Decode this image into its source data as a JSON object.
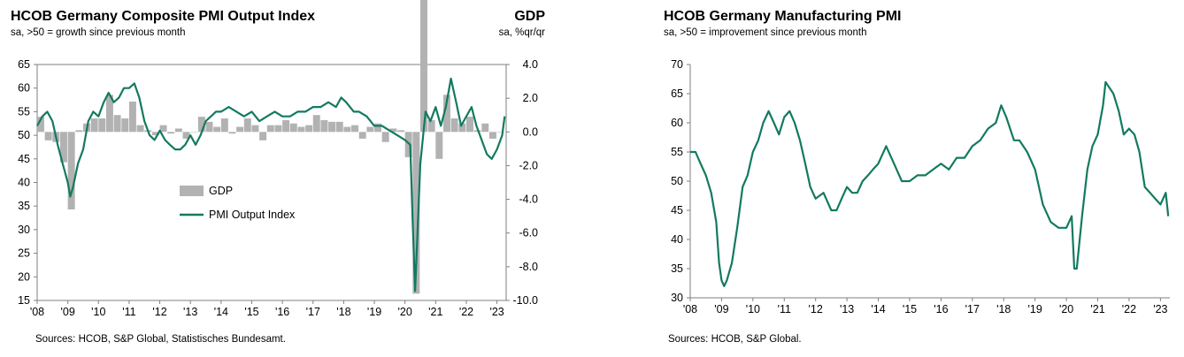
{
  "colors": {
    "line": "#127a60",
    "bars": "#b2b2b2",
    "axis": "#7f7f7f"
  },
  "charts": [
    {
      "title": "HCOB Germany Composite PMI Output Index",
      "subtitle": "sa, >50 = growth since previous month",
      "right_title": "GDP",
      "right_subtitle": "sa, %qr/qr",
      "source": "Sources: HCOB, S&P Global, Statistisches Bundesamt."
    },
    {
      "title": "HCOB Germany Manufacturing PMI",
      "subtitle": "sa, >50 = improvement since previous month",
      "source": "Sources: HCOB, S&P Global."
    }
  ],
  "chart_data": [
    {
      "type": "line",
      "x_ticks": [
        "'08",
        "'09",
        "'10",
        "'11",
        "'12",
        "'13",
        "'14",
        "'15",
        "'16",
        "'17",
        "'18",
        "'19",
        "'20",
        "'21",
        "'22",
        "'23"
      ],
      "ylim_left": [
        15,
        65
      ],
      "yticks_left": [
        "15",
        "20",
        "25",
        "30",
        "35",
        "40",
        "45",
        "50",
        "55",
        "60",
        "65"
      ],
      "ylim_right": [
        -10,
        4
      ],
      "yticks_right": [
        "-10.0",
        "-8.0",
        "-6.0",
        "-4.0",
        "-2.0",
        "0.0",
        "2.0",
        "4.0"
      ],
      "legend": [
        "GDP",
        "PMI Output Index"
      ],
      "series": [
        {
          "name": "PMI Output Index",
          "axis": "left",
          "x": [
            2008.0,
            2008.17,
            2008.33,
            2008.5,
            2008.67,
            2008.83,
            2009.0,
            2009.08,
            2009.17,
            2009.33,
            2009.5,
            2009.67,
            2009.83,
            2010.0,
            2010.17,
            2010.33,
            2010.5,
            2010.67,
            2010.83,
            2011.0,
            2011.17,
            2011.33,
            2011.5,
            2011.67,
            2011.83,
            2012.0,
            2012.17,
            2012.33,
            2012.5,
            2012.67,
            2012.83,
            2013.0,
            2013.17,
            2013.33,
            2013.5,
            2013.67,
            2013.83,
            2014.0,
            2014.25,
            2014.5,
            2014.75,
            2015.0,
            2015.25,
            2015.5,
            2015.75,
            2016.0,
            2016.25,
            2016.5,
            2016.75,
            2017.0,
            2017.25,
            2017.5,
            2017.75,
            2017.92,
            2018.08,
            2018.33,
            2018.5,
            2018.75,
            2019.0,
            2019.25,
            2019.5,
            2019.75,
            2020.0,
            2020.17,
            2020.25,
            2020.33,
            2020.5,
            2020.67,
            2020.83,
            2021.0,
            2021.17,
            2021.33,
            2021.5,
            2021.67,
            2021.83,
            2022.0,
            2022.17,
            2022.33,
            2022.5,
            2022.67,
            2022.83,
            2023.0,
            2023.17,
            2023.25
          ],
          "values": [
            52,
            54,
            55,
            53,
            48,
            44,
            40,
            37,
            39,
            44,
            47,
            53,
            55,
            54,
            57,
            59,
            57,
            58,
            60,
            60,
            61,
            58,
            53,
            50,
            49,
            51,
            49,
            48,
            47,
            47,
            48,
            50,
            48,
            50,
            53,
            54,
            55,
            55,
            56,
            55,
            54,
            55,
            53,
            54,
            55,
            54,
            54,
            55,
            55,
            56,
            56,
            57,
            56,
            58,
            57,
            55,
            55,
            54,
            52,
            52,
            51,
            50,
            49,
            48,
            32,
            17,
            44,
            55,
            53,
            56,
            52,
            56,
            62,
            57,
            52,
            54,
            56,
            52,
            49,
            46,
            45,
            47,
            50,
            54
          ]
        },
        {
          "name": "GDP",
          "axis": "right",
          "x": [
            2008.0,
            2008.25,
            2008.5,
            2008.75,
            2009.0,
            2009.25,
            2009.5,
            2009.75,
            2010.0,
            2010.25,
            2010.5,
            2010.75,
            2011.0,
            2011.25,
            2011.5,
            2011.75,
            2012.0,
            2012.25,
            2012.5,
            2012.75,
            2013.0,
            2013.25,
            2013.5,
            2013.75,
            2014.0,
            2014.25,
            2014.5,
            2014.75,
            2015.0,
            2015.25,
            2015.5,
            2015.75,
            2016.0,
            2016.25,
            2016.5,
            2016.75,
            2017.0,
            2017.25,
            2017.5,
            2017.75,
            2018.0,
            2018.25,
            2018.5,
            2018.75,
            2019.0,
            2019.25,
            2019.5,
            2019.75,
            2020.0,
            2020.25,
            2020.5,
            2020.75,
            2021.0,
            2021.25,
            2021.5,
            2021.75,
            2022.0,
            2022.25,
            2022.5,
            2022.75,
            2023.0
          ],
          "values": [
            0.9,
            -0.5,
            -0.6,
            -1.8,
            -4.6,
            0.1,
            0.5,
            0.8,
            0.8,
            2.2,
            1.0,
            0.8,
            1.8,
            0.4,
            0.1,
            -0.2,
            0.4,
            -0.1,
            0.2,
            -0.4,
            0.0,
            0.9,
            0.6,
            0.3,
            0.8,
            -0.1,
            0.3,
            0.8,
            0.4,
            -0.5,
            0.4,
            0.4,
            0.7,
            0.5,
            0.3,
            0.4,
            1.0,
            0.7,
            0.6,
            0.6,
            0.3,
            0.4,
            -0.4,
            0.3,
            0.5,
            -0.6,
            0.2,
            0.1,
            -1.5,
            -9.6,
            9.0,
            0.7,
            -1.6,
            2.2,
            0.8,
            0.5,
            0.9,
            0.1,
            0.5,
            -0.4,
            0.0
          ]
        }
      ]
    },
    {
      "type": "line",
      "x_ticks": [
        "'08",
        "'09",
        "'10",
        "'11",
        "'12",
        "'13",
        "'14",
        "'15",
        "'16",
        "'17",
        "'18",
        "'19",
        "'20",
        "'21",
        "'22",
        "'23"
      ],
      "ylim": [
        30,
        70
      ],
      "yticks": [
        "30",
        "35",
        "40",
        "45",
        "50",
        "55",
        "60",
        "65",
        "70"
      ],
      "series": [
        {
          "name": "Manufacturing PMI",
          "x": [
            2008.0,
            2008.17,
            2008.33,
            2008.5,
            2008.67,
            2008.83,
            2008.92,
            2009.0,
            2009.08,
            2009.17,
            2009.33,
            2009.5,
            2009.67,
            2009.83,
            2010.0,
            2010.17,
            2010.33,
            2010.5,
            2010.67,
            2010.83,
            2011.0,
            2011.17,
            2011.33,
            2011.5,
            2011.67,
            2011.83,
            2012.0,
            2012.25,
            2012.5,
            2012.67,
            2012.83,
            2013.0,
            2013.17,
            2013.33,
            2013.5,
            2013.67,
            2013.83,
            2014.0,
            2014.25,
            2014.5,
            2014.75,
            2015.0,
            2015.25,
            2015.5,
            2015.75,
            2016.0,
            2016.25,
            2016.5,
            2016.75,
            2017.0,
            2017.25,
            2017.5,
            2017.75,
            2017.92,
            2018.08,
            2018.33,
            2018.5,
            2018.75,
            2019.0,
            2019.25,
            2019.5,
            2019.75,
            2020.0,
            2020.17,
            2020.25,
            2020.33,
            2020.5,
            2020.67,
            2020.83,
            2021.0,
            2021.17,
            2021.25,
            2021.5,
            2021.67,
            2021.83,
            2022.0,
            2022.17,
            2022.33,
            2022.5,
            2022.67,
            2022.83,
            2023.0,
            2023.17,
            2023.25
          ],
          "values": [
            55,
            55,
            53,
            51,
            48,
            43,
            36,
            33,
            32,
            33,
            36,
            42,
            49,
            51,
            55,
            57,
            60,
            62,
            60,
            58,
            61,
            62,
            60,
            57,
            53,
            49,
            47,
            48,
            45,
            45,
            47,
            49,
            48,
            48,
            50,
            51,
            52,
            53,
            56,
            53,
            50,
            50,
            51,
            51,
            52,
            53,
            52,
            54,
            54,
            56,
            57,
            59,
            60,
            63,
            61,
            57,
            57,
            55,
            52,
            46,
            43,
            42,
            42,
            44,
            35,
            35,
            44,
            52,
            56,
            58,
            63,
            67,
            65,
            62,
            58,
            59,
            58,
            55,
            49,
            48,
            47,
            46,
            48,
            44
          ]
        }
      ]
    }
  ]
}
